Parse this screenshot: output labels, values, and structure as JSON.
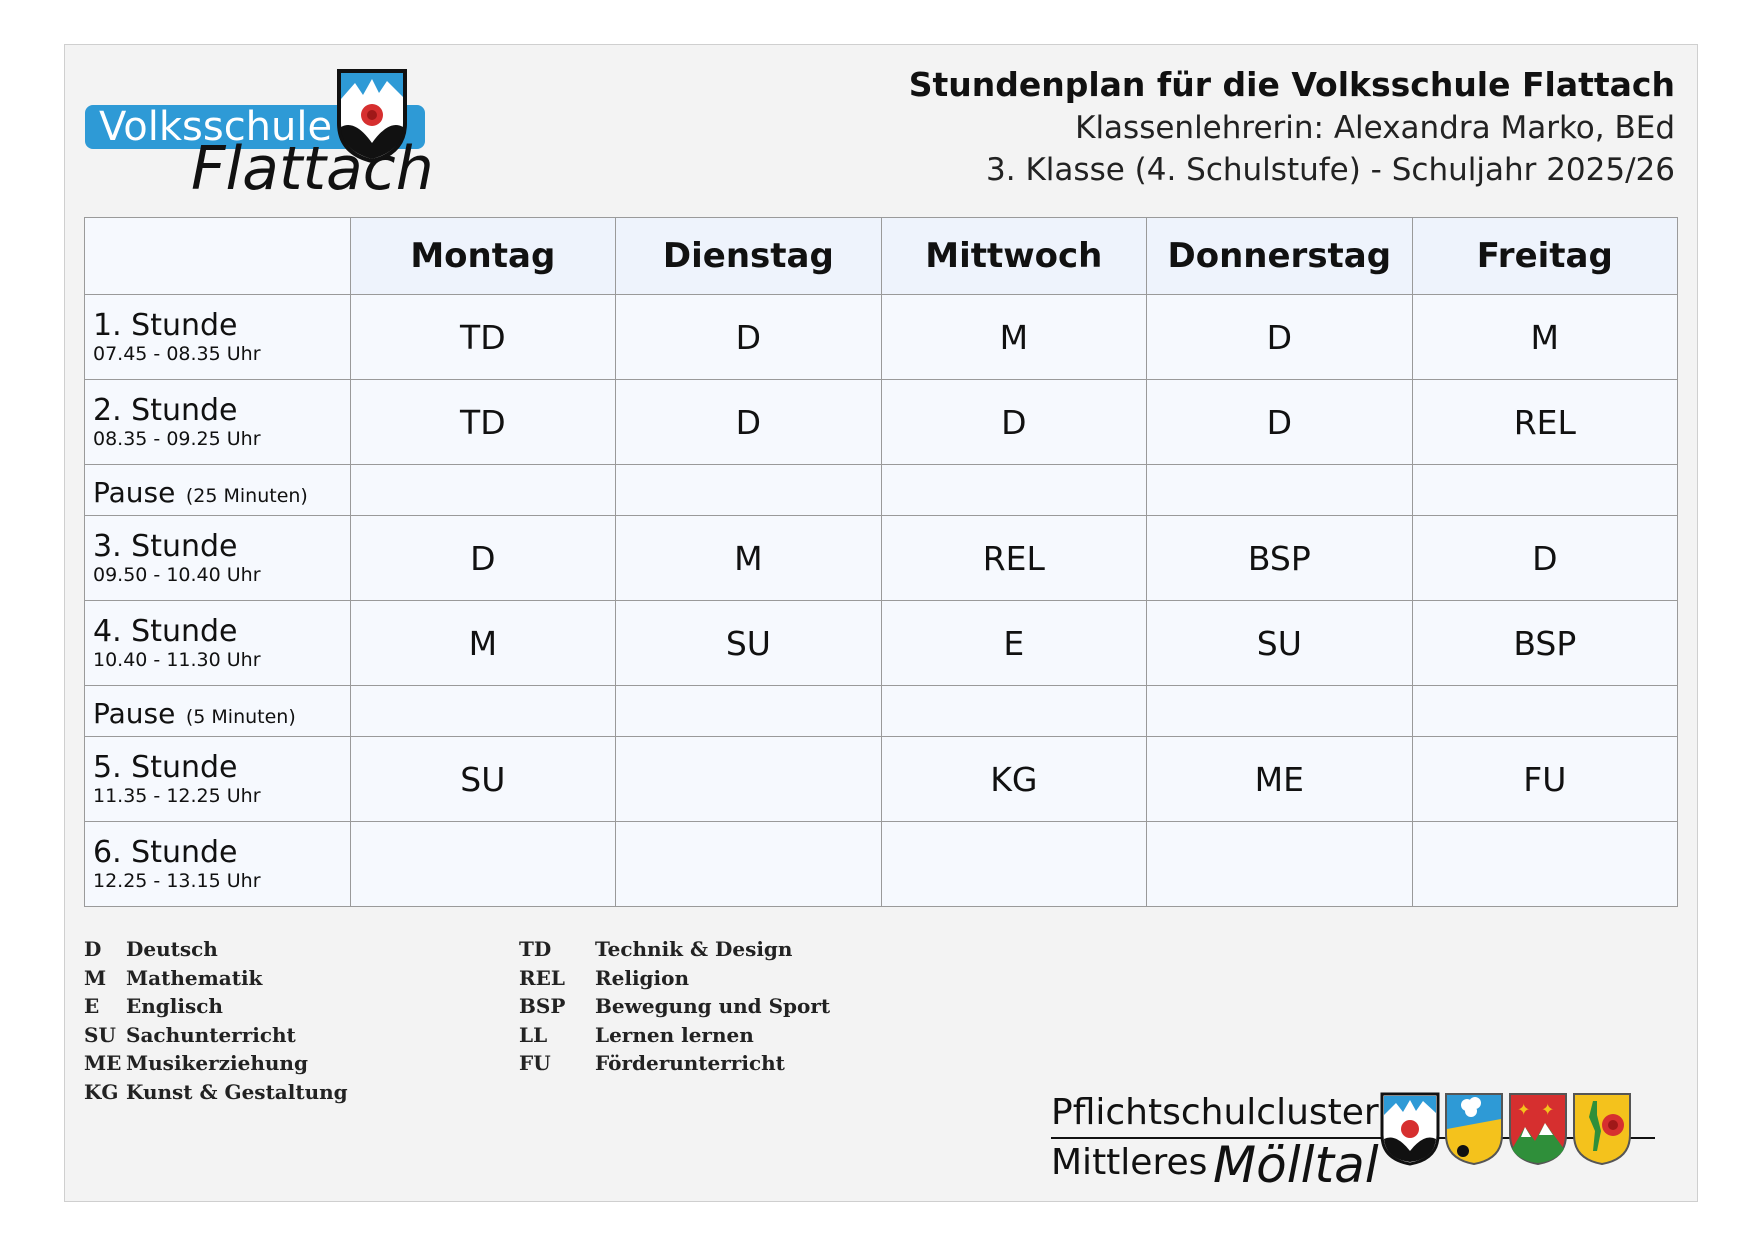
{
  "logo": {
    "line1": "Volksschule",
    "line2": "Flattach"
  },
  "header": {
    "title": "Stundenplan für die Volksschule Flattach",
    "teacher": "Klassenlehrerin: Alexandra Marko, BEd",
    "class_info": "3. Klasse (4. Schulstufe) - Schuljahr 2025/26"
  },
  "timetable": {
    "days": [
      "Montag",
      "Dienstag",
      "Mittwoch",
      "Donnerstag",
      "Freitag"
    ],
    "rows": [
      {
        "label": "1. Stunde",
        "time": "07.45 - 08.35 Uhr",
        "cells": [
          "TD",
          "D",
          "M",
          "D",
          "M"
        ]
      },
      {
        "label": "2. Stunde",
        "time": "08.35 - 09.25 Uhr",
        "cells": [
          "TD",
          "D",
          "D",
          "D",
          "REL"
        ]
      },
      {
        "label": "Pause",
        "duration": "(25 Minuten)"
      },
      {
        "label": "3. Stunde",
        "time": "09.50 - 10.40 Uhr",
        "cells": [
          "D",
          "M",
          "REL",
          "BSP",
          "D"
        ]
      },
      {
        "label": "4. Stunde",
        "time": "10.40 - 11.30 Uhr",
        "cells": [
          "M",
          "SU",
          "E",
          "SU",
          "BSP"
        ]
      },
      {
        "label": "Pause",
        "duration": "(5 Minuten)"
      },
      {
        "label": "5. Stunde",
        "time": "11.35 - 12.25 Uhr",
        "cells": [
          "SU",
          "",
          "KG",
          "ME",
          "FU"
        ]
      },
      {
        "label": "6. Stunde",
        "time": "12.25 - 13.15 Uhr",
        "cells": [
          "",
          "",
          "",
          "",
          ""
        ]
      }
    ]
  },
  "legend": {
    "left": [
      {
        "abbr": "D",
        "name": "Deutsch"
      },
      {
        "abbr": "M",
        "name": "Mathematik"
      },
      {
        "abbr": "E",
        "name": "Englisch"
      },
      {
        "abbr": "SU",
        "name": "Sachunterricht"
      },
      {
        "abbr": "ME",
        "name": "Musikerziehung"
      },
      {
        "abbr": "KG",
        "name": "Kunst & Gestaltung"
      }
    ],
    "right": [
      {
        "abbr": "TD",
        "name": "Technik & Design"
      },
      {
        "abbr": "REL",
        "name": "Religion"
      },
      {
        "abbr": "BSP",
        "name": "Bewegung und Sport"
      },
      {
        "abbr": "LL",
        "name": "Lernen lernen"
      },
      {
        "abbr": "FU",
        "name": "Förderunterricht"
      }
    ]
  },
  "cluster": {
    "line1": "Pflichtschulcluster",
    "line2": "Mittleres",
    "line3": "Mölltal"
  },
  "colors": {
    "brand_blue": "#2e9ad6",
    "crest_red": "#d62f2f",
    "crest_yellow": "#f4c21c"
  }
}
